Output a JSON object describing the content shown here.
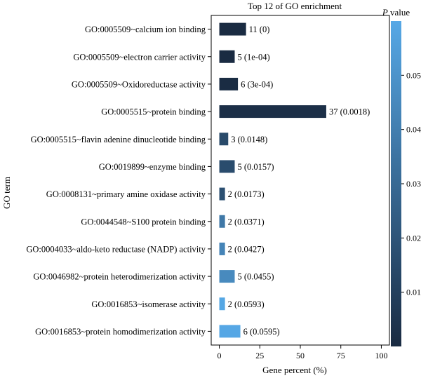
{
  "chart_data": {
    "type": "bar",
    "orientation": "horizontal",
    "title": "Top 12 of GO enrichment",
    "xlabel": "Gene percent (%)",
    "ylabel": "GO term",
    "xlim": [
      -5,
      105
    ],
    "xticks": [
      0,
      25,
      50,
      75,
      100
    ],
    "categories": [
      "GO:0005509~calcium ion binding",
      "GO:0005509~electron carrier activity",
      "GO:0005509~Oxidoreductase activity",
      "GO:0005515~protein binding",
      "GO:0005515~flavin adenine dinucleotide binding",
      "GO:0019899~enzyme binding",
      "GO:0008131~primary amine oxidase activity",
      "GO:0044548~S100 protein binding",
      "GO:0004033~aldo-keto reductase (NADP) activity",
      "GO:0046982~protein heterodimerization activity",
      "GO:0016853~isomerase activity",
      "GO:0016853~protein homodimerization activity"
    ],
    "values": [
      16.5,
      9.5,
      11.5,
      66,
      5.5,
      9.5,
      3.5,
      3.5,
      3.5,
      9.5,
      3.5,
      13
    ],
    "bar_labels": [
      "11 (0)",
      "5 (1e-04)",
      "6 (3e-04)",
      "37 (0.0018)",
      "3 (0.0148)",
      "5 (0.0157)",
      "2 (0.0173)",
      "2 (0.0371)",
      "2 (0.0427)",
      "5 (0.0455)",
      "2 (0.0593)",
      "6 (0.0595)"
    ],
    "p_values": [
      0,
      0.0001,
      0.0003,
      0.0018,
      0.0148,
      0.0157,
      0.0173,
      0.0371,
      0.0427,
      0.0455,
      0.0593,
      0.0595
    ],
    "colorbar": {
      "title": "P value",
      "range": [
        0,
        0.06
      ],
      "ticks": [
        "0.01",
        "0.02",
        "0.03",
        "0.04",
        "0.05"
      ],
      "color_low": "#1a2b42",
      "color_high": "#56a8e6"
    },
    "grid": false,
    "legend": "right"
  }
}
